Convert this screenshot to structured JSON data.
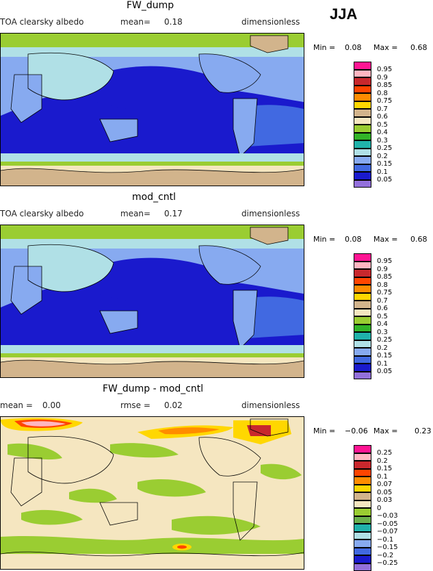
{
  "season": "JJA",
  "panels": [
    {
      "title": "FW_dump",
      "left_label": "TOA clearsky albedo",
      "stat_label": "mean=",
      "stat_value": "0.18",
      "units": "dimensionless",
      "min_label": "Min =",
      "min_value": "0.08",
      "max_label": "Max =",
      "max_value": "0.68"
    },
    {
      "title": "mod_cntl",
      "left_label": "TOA clearsky albedo",
      "stat_label": "mean=",
      "stat_value": "0.17",
      "units": "dimensionless",
      "min_label": "Min =",
      "min_value": "0.08",
      "max_label": "Max =",
      "max_value": "0.68"
    },
    {
      "title": "FW_dump - mod_cntl",
      "left_label": "mean =",
      "left_value": "0.00",
      "stat_label": "rmse =",
      "stat_value": "0.02",
      "units": "dimensionless",
      "min_label": "Min =",
      "min_value": "−0.06",
      "max_label": "Max =",
      "max_value": "0.23"
    }
  ],
  "chart_data": [
    {
      "type": "heatmap",
      "title": "FW_dump",
      "variable": "TOA clearsky albedo",
      "mean": 0.18,
      "min": 0.08,
      "max": 0.68,
      "units": "dimensionless",
      "colorbar": {
        "levels": [
          "0.95",
          "0.9",
          "0.85",
          "0.8",
          "0.75",
          "0.7",
          "0.6",
          "0.5",
          "0.4",
          "0.3",
          "0.25",
          "0.2",
          "0.15",
          "0.1",
          "0.05"
        ],
        "colors": [
          "#ff1493",
          "#ffb6c1",
          "#c8282d",
          "#ff4500",
          "#ff8c00",
          "#ffd700",
          "#d2b48c",
          "#f5e6c0",
          "#9acd32",
          "#32b428",
          "#20b2aa",
          "#b0e0e6",
          "#87aaf0",
          "#4169e1",
          "#1a1acd",
          "#9370db"
        ]
      }
    },
    {
      "type": "heatmap",
      "title": "mod_cntl",
      "variable": "TOA clearsky albedo",
      "mean": 0.17,
      "min": 0.08,
      "max": 0.68,
      "units": "dimensionless",
      "colorbar": {
        "levels": [
          "0.95",
          "0.9",
          "0.85",
          "0.8",
          "0.75",
          "0.7",
          "0.6",
          "0.5",
          "0.4",
          "0.3",
          "0.25",
          "0.2",
          "0.15",
          "0.1",
          "0.05"
        ],
        "colors": [
          "#ff1493",
          "#ffb6c1",
          "#c8282d",
          "#ff4500",
          "#ff8c00",
          "#ffd700",
          "#d2b48c",
          "#f5e6c0",
          "#9acd32",
          "#32b428",
          "#20b2aa",
          "#b0e0e6",
          "#87aaf0",
          "#4169e1",
          "#1a1acd",
          "#9370db"
        ]
      }
    },
    {
      "type": "heatmap",
      "title": "FW_dump - mod_cntl",
      "mean": 0.0,
      "rmse": 0.02,
      "min": -0.06,
      "max": 0.23,
      "units": "dimensionless",
      "colorbar": {
        "levels": [
          "0.25",
          "0.2",
          "0.15",
          "0.1",
          "0.07",
          "0.05",
          "0.03",
          "0",
          "−0.03",
          "−0.05",
          "−0.07",
          "−0.1",
          "−0.15",
          "−0.2",
          "−0.25"
        ],
        "colors": [
          "#ff1493",
          "#ffb6c1",
          "#c8282d",
          "#ff4500",
          "#ff8c00",
          "#ffd700",
          "#d2b48c",
          "#f5e6c0",
          "#9acd32",
          "#6ab04c",
          "#20b2aa",
          "#b0e0e6",
          "#87aaf0",
          "#4169e1",
          "#1a1acd",
          "#9370db"
        ]
      }
    }
  ]
}
